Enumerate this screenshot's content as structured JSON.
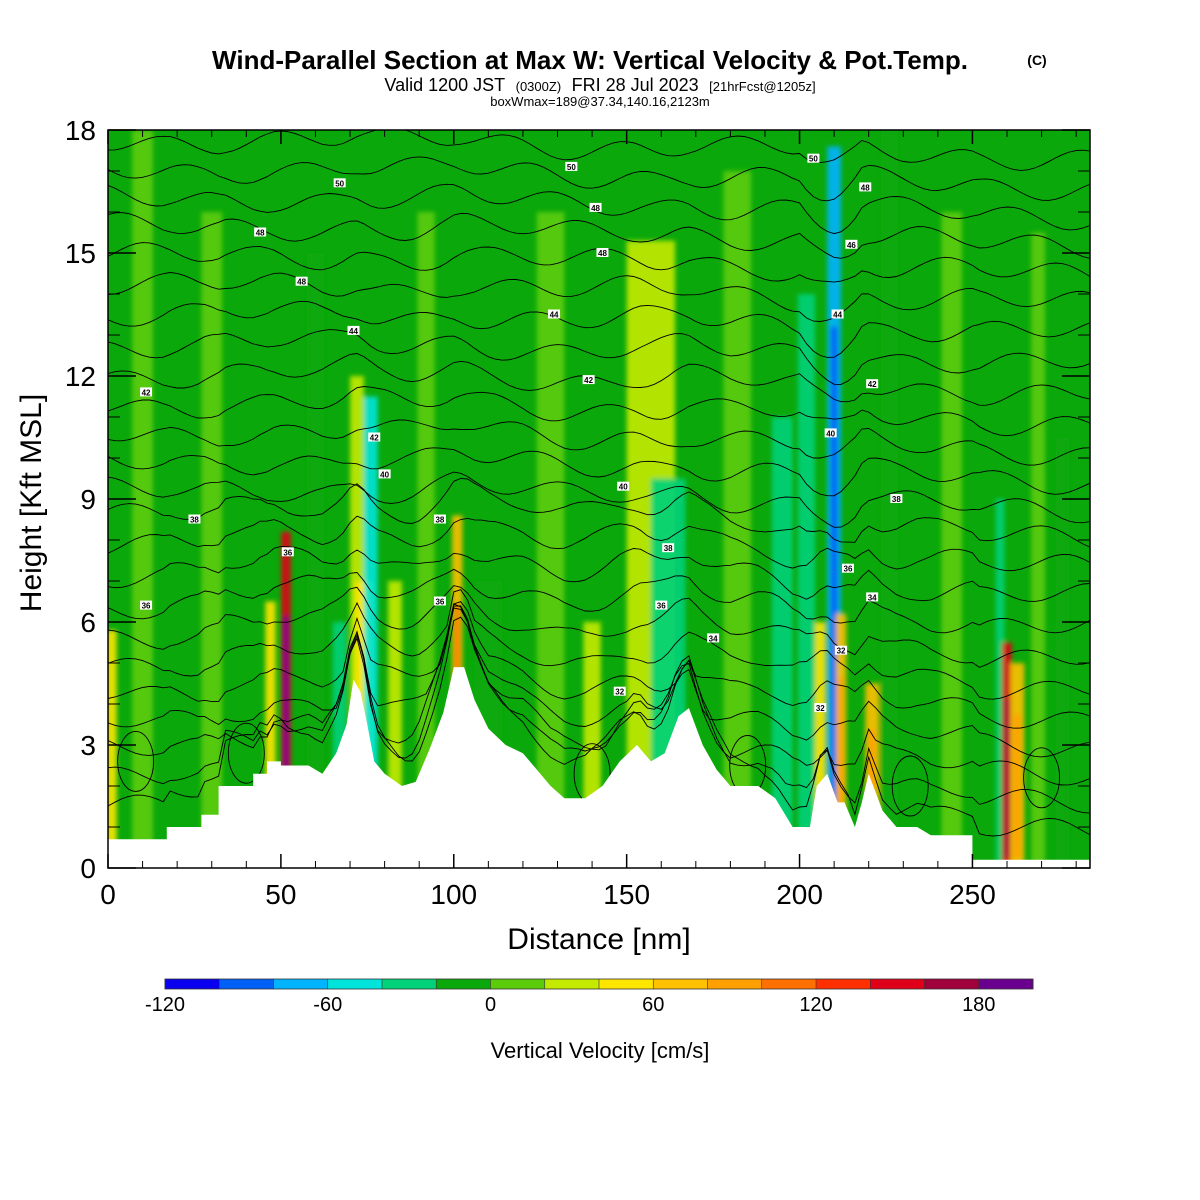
{
  "title": {
    "main": "Wind-Parallel Section at Max W: Vertical Velocity & Pot.Temp.",
    "mark": "(C)",
    "valid_prefix": "Valid 1200 JST",
    "valid_z": "(0300Z)",
    "valid_date": "FRI 28 Jul 2023",
    "forecast": "[21hrFcst@1205z]",
    "boxmax": "boxWmax=189@37.34,140.16,2123m"
  },
  "chart_data": {
    "type": "heatmap",
    "xlabel": "Distance [nm]",
    "ylabel": "Height [Kft MSL]",
    "xlim": [
      0,
      284
    ],
    "ylim": [
      0,
      18
    ],
    "xticks": [
      "0",
      "50",
      "100",
      "150",
      "200",
      "250"
    ],
    "yticks": [
      "0",
      "3",
      "6",
      "9",
      "12",
      "15",
      "18"
    ],
    "xtick_values": [
      0,
      50,
      100,
      150,
      200,
      250
    ],
    "ytick_values": [
      0,
      3,
      6,
      9,
      12,
      15,
      18
    ],
    "terrain": [
      [
        0,
        0.7
      ],
      [
        17,
        0.7
      ],
      [
        17,
        1.0
      ],
      [
        27,
        1.0
      ],
      [
        27,
        1.3
      ],
      [
        32,
        1.3
      ],
      [
        32,
        2.0
      ],
      [
        42,
        2.0
      ],
      [
        42,
        2.3
      ],
      [
        46,
        2.3
      ],
      [
        46,
        2.6
      ],
      [
        50,
        2.6
      ],
      [
        50,
        2.5
      ],
      [
        58,
        2.5
      ],
      [
        62,
        2.3
      ],
      [
        66,
        2.8
      ],
      [
        69,
        3.5
      ],
      [
        71,
        4.6
      ],
      [
        73,
        4.3
      ],
      [
        75,
        3.5
      ],
      [
        77,
        2.6
      ],
      [
        80,
        2.3
      ],
      [
        85,
        2.0
      ],
      [
        89,
        2.1
      ],
      [
        93,
        2.9
      ],
      [
        97,
        3.8
      ],
      [
        100,
        4.9
      ],
      [
        103,
        4.9
      ],
      [
        106,
        4.1
      ],
      [
        110,
        3.4
      ],
      [
        115,
        3.0
      ],
      [
        120,
        2.8
      ],
      [
        124,
        2.4
      ],
      [
        128,
        2.0
      ],
      [
        132,
        1.7
      ],
      [
        138,
        1.7
      ],
      [
        143,
        2.0
      ],
      [
        148,
        2.6
      ],
      [
        153,
        3.0
      ],
      [
        157,
        2.6
      ],
      [
        161,
        2.8
      ],
      [
        165,
        3.7
      ],
      [
        168,
        3.9
      ],
      [
        172,
        3.0
      ],
      [
        176,
        2.4
      ],
      [
        180,
        2.0
      ],
      [
        188,
        2.0
      ],
      [
        193,
        1.7
      ],
      [
        198,
        1.0
      ],
      [
        203,
        1.0
      ],
      [
        205,
        2.0
      ],
      [
        208,
        2.3
      ],
      [
        211,
        1.6
      ],
      [
        213,
        1.6
      ],
      [
        216,
        1.0
      ],
      [
        218,
        1.6
      ],
      [
        220,
        2.3
      ],
      [
        224,
        1.4
      ],
      [
        228,
        1.0
      ],
      [
        234,
        1.0
      ],
      [
        238,
        0.8
      ],
      [
        250,
        0.8
      ],
      [
        250,
        0.2
      ],
      [
        284,
        0.2
      ]
    ],
    "velocity_bands": [
      {
        "x": 1,
        "w": 3,
        "ztop": 5.8,
        "v": 45
      },
      {
        "x": 10,
        "w": 6,
        "ztop": 18,
        "v": 12
      },
      {
        "x": 30,
        "w": 6,
        "ztop": 16,
        "v": 15
      },
      {
        "x": 47,
        "w": 3,
        "ztop": 6.5,
        "v": 50
      },
      {
        "x": 51.5,
        "w": 2.8,
        "ztop": 8.2,
        "v": 150
      },
      {
        "x": 60,
        "w": 5,
        "ztop": 15,
        "v": -10
      },
      {
        "x": 67,
        "w": 4,
        "ztop": 6,
        "v": -30
      },
      {
        "x": 72,
        "w": 4,
        "ztop": 12,
        "v": 30
      },
      {
        "x": 74,
        "w": 5,
        "ztop": 7,
        "v": 55
      },
      {
        "x": 76,
        "w": 4,
        "ztop": 11.5,
        "v": -45
      },
      {
        "x": 83,
        "w": 4,
        "ztop": 7,
        "v": 30
      },
      {
        "x": 92,
        "w": 5,
        "ztop": 16,
        "v": 15
      },
      {
        "x": 101,
        "w": 3,
        "ztop": 8.6,
        "v": 70
      },
      {
        "x": 110,
        "w": 8,
        "ztop": 7,
        "v": -20
      },
      {
        "x": 128,
        "w": 8,
        "ztop": 16,
        "v": 12
      },
      {
        "x": 140,
        "w": 5,
        "ztop": 6,
        "v": 30
      },
      {
        "x": 157,
        "w": 14,
        "ztop": 15.3,
        "v": 35
      },
      {
        "x": 162,
        "w": 10,
        "ztop": 9.5,
        "v": -25
      },
      {
        "x": 182,
        "w": 8,
        "ztop": 17,
        "v": 15
      },
      {
        "x": 195,
        "w": 6,
        "ztop": 11,
        "v": -25
      },
      {
        "x": 202,
        "w": 5,
        "ztop": 14,
        "v": -30
      },
      {
        "x": 206,
        "w": 3,
        "ztop": 6,
        "v": 45
      },
      {
        "x": 210,
        "w": 4,
        "ztop": 17.6,
        "v": -65
      },
      {
        "x": 212,
        "w": 3,
        "ztop": 6.2,
        "v": 60
      },
      {
        "x": 221,
        "w": 4,
        "ztop": 4.5,
        "v": 60
      },
      {
        "x": 226,
        "w": 5,
        "ztop": 18,
        "v": -15
      },
      {
        "x": 244,
        "w": 6,
        "ztop": 16,
        "v": 12
      },
      {
        "x": 258,
        "w": 2.5,
        "ztop": 9,
        "v": -40
      },
      {
        "x": 260,
        "w": 2.8,
        "ztop": 5.5,
        "v": 140
      },
      {
        "x": 263,
        "w": 4,
        "ztop": 5,
        "v": 60
      },
      {
        "x": 269,
        "w": 4,
        "ztop": 15.5,
        "v": 15
      },
      {
        "x": 276,
        "w": 4,
        "ztop": 10.5,
        "v": -15
      }
    ],
    "contour_labels": [
      {
        "text": "50",
        "x": 67,
        "z": 16.7
      },
      {
        "text": "50",
        "x": 134,
        "z": 17.1
      },
      {
        "text": "50",
        "x": 204,
        "z": 17.3
      },
      {
        "text": "48",
        "x": 44,
        "z": 15.5
      },
      {
        "text": "48",
        "x": 56,
        "z": 14.3
      },
      {
        "text": "48",
        "x": 141,
        "z": 16.1
      },
      {
        "text": "48",
        "x": 143,
        "z": 15.0
      },
      {
        "text": "48",
        "x": 219,
        "z": 16.6
      },
      {
        "text": "46",
        "x": 215,
        "z": 15.2
      },
      {
        "text": "44",
        "x": 71,
        "z": 13.1
      },
      {
        "text": "44",
        "x": 129,
        "z": 13.5
      },
      {
        "text": "44",
        "x": 211,
        "z": 13.5
      },
      {
        "text": "42",
        "x": 11,
        "z": 11.6
      },
      {
        "text": "42",
        "x": 77,
        "z": 10.5
      },
      {
        "text": "42",
        "x": 139,
        "z": 11.9
      },
      {
        "text": "42",
        "x": 221,
        "z": 11.8
      },
      {
        "text": "40",
        "x": 80,
        "z": 9.6
      },
      {
        "text": "40",
        "x": 149,
        "z": 9.3
      },
      {
        "text": "40",
        "x": 209,
        "z": 10.6
      },
      {
        "text": "38",
        "x": 25,
        "z": 8.5
      },
      {
        "text": "38",
        "x": 96,
        "z": 8.5
      },
      {
        "text": "38",
        "x": 162,
        "z": 7.8
      },
      {
        "text": "38",
        "x": 228,
        "z": 9.0
      },
      {
        "text": "36",
        "x": 52,
        "z": 7.7
      },
      {
        "text": "36",
        "x": 96,
        "z": 6.5
      },
      {
        "text": "36",
        "x": 160,
        "z": 6.4
      },
      {
        "text": "36",
        "x": 214,
        "z": 7.3
      },
      {
        "text": "36",
        "x": 11,
        "z": 6.4
      },
      {
        "text": "34",
        "x": 175,
        "z": 5.6
      },
      {
        "text": "34",
        "x": 221,
        "z": 6.6
      },
      {
        "text": "32",
        "x": 148,
        "z": 4.3
      },
      {
        "text": "32",
        "x": 212,
        "z": 5.3
      },
      {
        "text": "32",
        "x": 206,
        "z": 3.9
      }
    ],
    "colorbar": {
      "colors": [
        "#0a00f0",
        "#0060f5",
        "#00b4ff",
        "#00e4dc",
        "#00d27a",
        "#0aa80a",
        "#5ccc0a",
        "#c4ea00",
        "#ffe600",
        "#ffc000",
        "#ffa000",
        "#ff7000",
        "#ff3000",
        "#e0001a",
        "#a0003c",
        "#6a0090"
      ],
      "min": -120,
      "max": 200,
      "step": 20,
      "labels": [
        "-120",
        "-60",
        "0",
        "60",
        "120",
        "180"
      ],
      "label_values": [
        -120,
        -60,
        0,
        60,
        120,
        180
      ],
      "title": "Vertical Velocity [cm/s]"
    }
  }
}
